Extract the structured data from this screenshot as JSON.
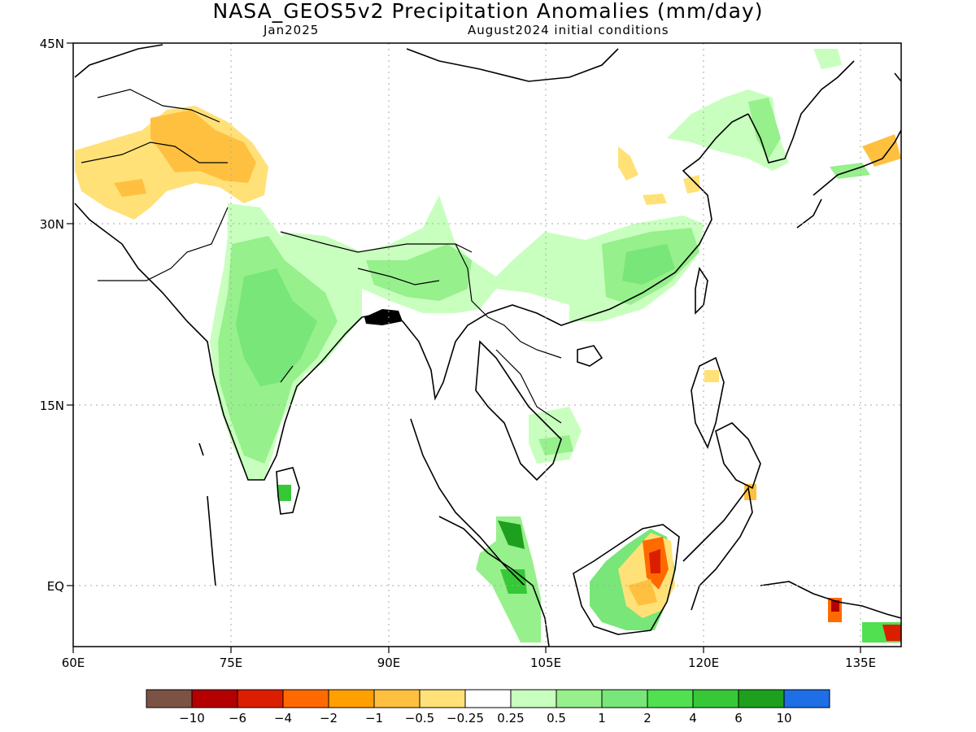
{
  "title": "NASA_GEOS5v2 Precipitation Anomalies (mm/day)",
  "subtitle_left": "Jan2025",
  "subtitle_right": "August2024 initial conditions",
  "axes": {
    "x_ticks": [
      "60E",
      "75E",
      "90E",
      "105E",
      "120E",
      "135E"
    ],
    "y_ticks": [
      "45N",
      "30N",
      "15N",
      "EQ"
    ],
    "lon_range": [
      60,
      139
    ],
    "lat_range": [
      -5,
      45
    ]
  },
  "colorbar": {
    "colors": [
      "#7b5344",
      "#b40000",
      "#dc1e00",
      "#ff6a00",
      "#ffa000",
      "#ffc040",
      "#ffe178",
      "#ffffff",
      "#c8ffbe",
      "#96f08c",
      "#78e678",
      "#50e050",
      "#37c837",
      "#1ea01e",
      "#1e6ee6"
    ],
    "labels": [
      "-10",
      "-6",
      "-4",
      "-2",
      "-1",
      "-0.5",
      "-0.25",
      "0.25",
      "0.5",
      "1",
      "2",
      "4",
      "6",
      "10"
    ]
  }
}
